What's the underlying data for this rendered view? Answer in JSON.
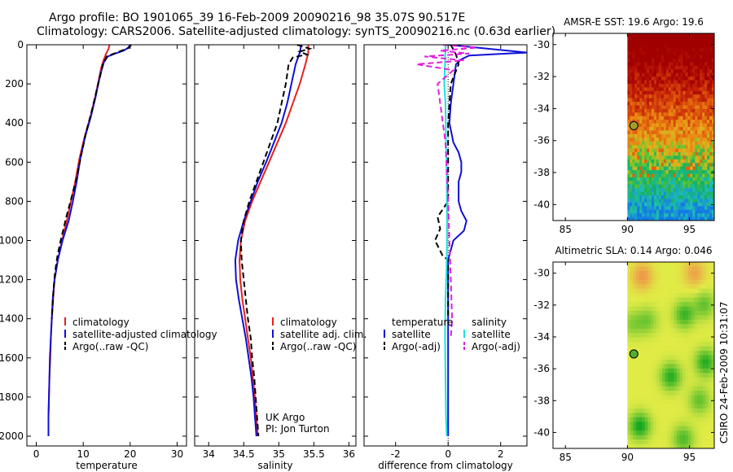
{
  "title_line1": "Argo profile: BO 1901065_39 16-Feb-2009 20090216_98 35.07S 90.517E",
  "title_line2": "Climatology: CARS2006. Satellite-adjusted climatology: synTS_20090216.nc (0.63d earlier)",
  "side_label": "CSIRO 24-Feb-2009 10:31:07",
  "credit": {
    "line1": "UK Argo",
    "line2": "PI: Jon Turton"
  },
  "colors": {
    "climatology": "#e8201a",
    "satellite": "#1010d8",
    "argo": "#000000",
    "sat_salinity": "#20e0e0",
    "argo_salinity": "#e020e0"
  },
  "chart_data": [
    {
      "id": "temperature",
      "type": "line",
      "xlabel": "temperature",
      "ylabel": "",
      "xlim": [
        -2,
        32
      ],
      "ylim": [
        2050,
        0
      ],
      "xticks": [
        0,
        10,
        20,
        30
      ],
      "yticks": [
        0,
        200,
        400,
        600,
        800,
        1000,
        1200,
        1400,
        1600,
        1800,
        2000
      ],
      "legend": [
        "climatology",
        "satellite-adjusted climatology",
        "Argo(..raw -QC)"
      ],
      "series": [
        {
          "name": "climatology",
          "color": "#e8201a",
          "dash": false,
          "points": [
            [
              15.6,
              0
            ],
            [
              15.4,
              20
            ],
            [
              14.9,
              45
            ],
            [
              14.3,
              80
            ],
            [
              13.8,
              120
            ],
            [
              13.3,
              180
            ],
            [
              12.6,
              260
            ],
            [
              11.6,
              360
            ],
            [
              10.3,
              470
            ],
            [
              9.2,
              580
            ],
            [
              8.3,
              700
            ],
            [
              7.4,
              800
            ],
            [
              6.5,
              900
            ],
            [
              5.5,
              1000
            ],
            [
              4.6,
              1100
            ],
            [
              3.9,
              1200
            ],
            [
              3.6,
              1300
            ],
            [
              3.3,
              1400
            ],
            [
              3.1,
              1500
            ],
            [
              3.0,
              1600
            ],
            [
              2.8,
              1700
            ],
            [
              2.7,
              1800
            ],
            [
              2.6,
              1900
            ],
            [
              2.6,
              2000
            ]
          ]
        },
        {
          "name": "satellite-adjusted climatology",
          "color": "#1010d8",
          "dash": false,
          "points": [
            [
              20.0,
              0
            ],
            [
              19.6,
              15
            ],
            [
              18.6,
              30
            ],
            [
              16.8,
              45
            ],
            [
              15.2,
              60
            ],
            [
              14.4,
              90
            ],
            [
              13.9,
              130
            ],
            [
              13.3,
              190
            ],
            [
              12.6,
              270
            ],
            [
              11.6,
              370
            ],
            [
              10.4,
              470
            ],
            [
              9.4,
              580
            ],
            [
              8.6,
              700
            ],
            [
              7.8,
              800
            ],
            [
              6.9,
              900
            ],
            [
              5.6,
              1000
            ],
            [
              4.6,
              1100
            ],
            [
              3.9,
              1200
            ],
            [
              3.5,
              1300
            ],
            [
              3.3,
              1400
            ],
            [
              3.1,
              1500
            ],
            [
              2.9,
              1600
            ],
            [
              2.8,
              1700
            ],
            [
              2.7,
              1800
            ],
            [
              2.6,
              1900
            ],
            [
              2.6,
              2000
            ]
          ]
        },
        {
          "name": "Argo(..raw -QC)",
          "color": "#000000",
          "dash": true,
          "points": [
            [
              20.2,
              0
            ],
            [
              19.8,
              15
            ],
            [
              18.2,
              30
            ],
            [
              16.6,
              45
            ],
            [
              15.0,
              60
            ],
            [
              14.2,
              100
            ],
            [
              13.6,
              160
            ],
            [
              12.8,
              240
            ],
            [
              11.8,
              340
            ],
            [
              10.6,
              450
            ],
            [
              9.6,
              560
            ],
            [
              8.6,
              680
            ],
            [
              7.3,
              800
            ],
            [
              6.4,
              880
            ],
            [
              5.8,
              940
            ],
            [
              5.2,
              1000
            ],
            [
              4.5,
              1080
            ],
            [
              4.0,
              1160
            ],
            [
              3.7,
              1240
            ],
            [
              3.5,
              1320
            ],
            [
              3.3,
              1400
            ]
          ]
        }
      ]
    },
    {
      "id": "salinity",
      "type": "line",
      "xlabel": "salinity",
      "ylabel": "",
      "xlim": [
        33.8,
        36.1
      ],
      "ylim": [
        2050,
        0
      ],
      "xticks": [
        34,
        34.5,
        35,
        35.5,
        36
      ],
      "yticks": [
        0,
        200,
        400,
        600,
        800,
        1000,
        1200,
        1400,
        1600,
        1800,
        2000
      ],
      "legend": [
        "climatology",
        "satellite adj. clim.",
        "Argo(..raw -QC)"
      ],
      "series": [
        {
          "name": "climatology",
          "color": "#e8201a",
          "dash": false,
          "points": [
            [
              35.42,
              0
            ],
            [
              35.42,
              40
            ],
            [
              35.38,
              100
            ],
            [
              35.3,
              200
            ],
            [
              35.2,
              300
            ],
            [
              35.1,
              400
            ],
            [
              34.98,
              500
            ],
            [
              34.86,
              600
            ],
            [
              34.74,
              700
            ],
            [
              34.62,
              800
            ],
            [
              34.52,
              900
            ],
            [
              34.46,
              1000
            ],
            [
              34.44,
              1100
            ],
            [
              34.45,
              1200
            ],
            [
              34.48,
              1300
            ],
            [
              34.52,
              1400
            ],
            [
              34.56,
              1500
            ],
            [
              34.6,
              1600
            ],
            [
              34.63,
              1700
            ],
            [
              34.66,
              1800
            ],
            [
              34.68,
              1900
            ],
            [
              34.7,
              2000
            ]
          ]
        },
        {
          "name": "satellite adj. clim.",
          "color": "#1010d8",
          "dash": false,
          "points": [
            [
              35.32,
              0
            ],
            [
              35.3,
              40
            ],
            [
              35.24,
              100
            ],
            [
              35.18,
              200
            ],
            [
              35.12,
              300
            ],
            [
              35.04,
              400
            ],
            [
              34.93,
              500
            ],
            [
              34.82,
              600
            ],
            [
              34.7,
              700
            ],
            [
              34.6,
              800
            ],
            [
              34.5,
              900
            ],
            [
              34.42,
              1000
            ],
            [
              34.38,
              1100
            ],
            [
              34.39,
              1200
            ],
            [
              34.43,
              1300
            ],
            [
              34.48,
              1400
            ],
            [
              34.53,
              1500
            ],
            [
              34.57,
              1600
            ],
            [
              34.61,
              1700
            ],
            [
              34.64,
              1800
            ],
            [
              34.66,
              1900
            ],
            [
              34.68,
              2000
            ]
          ]
        },
        {
          "name": "Argo(..raw -QC)",
          "color": "#000000",
          "dash": true,
          "points": [
            [
              35.26,
              0
            ],
            [
              35.44,
              20
            ],
            [
              35.3,
              35
            ],
            [
              35.4,
              50
            ],
            [
              35.2,
              65
            ],
            [
              35.14,
              100
            ],
            [
              35.1,
              200
            ],
            [
              35.04,
              300
            ],
            [
              34.98,
              400
            ],
            [
              34.88,
              500
            ],
            [
              34.78,
              600
            ],
            [
              34.68,
              700
            ],
            [
              34.58,
              800
            ],
            [
              34.5,
              900
            ],
            [
              34.46,
              1000
            ],
            [
              34.47,
              1100
            ],
            [
              34.5,
              1200
            ],
            [
              34.53,
              1300
            ],
            [
              34.56,
              1400
            ],
            [
              34.6,
              1500
            ],
            [
              34.62,
              1600
            ],
            [
              34.65,
              1700
            ],
            [
              34.67,
              1800
            ],
            [
              34.69,
              1900
            ],
            [
              34.71,
              2000
            ]
          ]
        }
      ]
    },
    {
      "id": "difference",
      "type": "line",
      "xlabel": "difference from climatology",
      "ylabel": "",
      "xlim": [
        -3.2,
        3
      ],
      "ylim": [
        2050,
        0
      ],
      "xticks": [
        -2,
        0,
        2
      ],
      "yticks": [
        0,
        200,
        400,
        600,
        800,
        1000,
        1200,
        1400,
        1600,
        1800,
        2000
      ],
      "legend": [
        "temperature",
        "satellite",
        "Argo(-adj)",
        "salinity",
        "satellite",
        "Argo(-adj)"
      ],
      "series": [
        {
          "name": "temperature satellite",
          "color": "#1010d8",
          "dash": false,
          "points": [
            [
              0,
              0
            ],
            [
              3.0,
              40
            ],
            [
              0.8,
              55
            ],
            [
              0.5,
              75
            ],
            [
              0.3,
              100
            ],
            [
              0.2,
              200
            ],
            [
              0.1,
              300
            ],
            [
              0.05,
              400
            ],
            [
              0.2,
              500
            ],
            [
              0.4,
              550
            ],
            [
              0.5,
              600
            ],
            [
              0.5,
              650
            ],
            [
              0.4,
              700
            ],
            [
              0.4,
              800
            ],
            [
              0.5,
              850
            ],
            [
              0.7,
              900
            ],
            [
              0.6,
              950
            ],
            [
              0.2,
              1000
            ],
            [
              0.0,
              1100
            ],
            [
              0.0,
              1200
            ],
            [
              0.0,
              1400
            ],
            [
              0.0,
              2000
            ]
          ]
        },
        {
          "name": "temperature Argo(-adj)",
          "color": "#000000",
          "dash": true,
          "points": [
            [
              0.1,
              0
            ],
            [
              0.3,
              50
            ],
            [
              0.4,
              100
            ],
            [
              0.1,
              200
            ],
            [
              0.0,
              400
            ],
            [
              0.0,
              800
            ],
            [
              -0.4,
              880
            ],
            [
              -0.3,
              940
            ],
            [
              -0.5,
              1000
            ],
            [
              -0.2,
              1080
            ],
            [
              0.0,
              1100
            ],
            [
              0.0,
              1400
            ]
          ]
        },
        {
          "name": "salinity satellite",
          "color": "#20e0e0",
          "dash": false,
          "points": [
            [
              -0.1,
              0
            ],
            [
              -0.12,
              100
            ],
            [
              -0.15,
              200
            ],
            [
              -0.1,
              300
            ],
            [
              -0.08,
              500
            ],
            [
              -0.05,
              700
            ],
            [
              -0.04,
              900
            ],
            [
              -0.05,
              1100
            ],
            [
              -0.1,
              1300
            ],
            [
              -0.12,
              1500
            ],
            [
              -0.1,
              1700
            ],
            [
              -0.08,
              1900
            ],
            [
              -0.05,
              2000
            ]
          ]
        },
        {
          "name": "salinity Argo(-adj)",
          "color": "#e020e0",
          "dash": true,
          "points": [
            [
              -0.2,
              0
            ],
            [
              1.1,
              15
            ],
            [
              -0.3,
              30
            ],
            [
              0.8,
              45
            ],
            [
              -0.9,
              60
            ],
            [
              0.6,
              80
            ],
            [
              -1.2,
              100
            ],
            [
              0.2,
              130
            ],
            [
              -0.4,
              200
            ],
            [
              -0.3,
              300
            ],
            [
              -0.1,
              500
            ],
            [
              0.0,
              800
            ],
            [
              0.05,
              1000
            ],
            [
              0.1,
              1200
            ],
            [
              0.15,
              1400
            ],
            [
              0.1,
              1500
            ]
          ]
        }
      ]
    },
    {
      "id": "sst-map",
      "type": "heatmap",
      "title": "AMSR-E SST: 19.6 Argo: 19.6",
      "xlim": [
        84,
        97
      ],
      "ylim": [
        -41,
        -29.3
      ],
      "xticks": [
        85,
        90,
        95
      ],
      "yticks": [
        -30,
        -32,
        -34,
        -36,
        -38,
        -40
      ],
      "data_west_limit": 90,
      "marker": {
        "lon": 90.517,
        "lat": -35.07
      }
    },
    {
      "id": "sla-map",
      "type": "heatmap",
      "title": "Altimetric SLA: 0.14 Argo: 0.046",
      "xlim": [
        84,
        97
      ],
      "ylim": [
        -41,
        -29.3
      ],
      "xticks": [
        85,
        90,
        95
      ],
      "yticks": [
        -30,
        -32,
        -34,
        -36,
        -38,
        -40
      ],
      "data_west_limit": 90,
      "marker": {
        "lon": 90.517,
        "lat": -35.07
      }
    }
  ]
}
